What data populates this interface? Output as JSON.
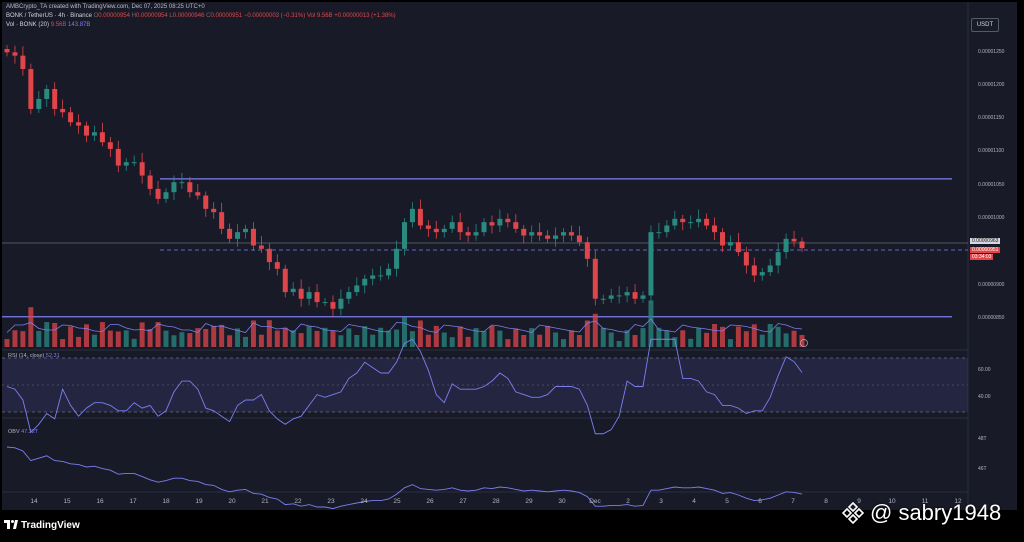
{
  "header": {
    "credit": "AMBCrypto_TA created with TradingView.com, Dec 07, 2025 08:25 UTC+0",
    "symbol": "BONK / TetherUS · 4h · Binance",
    "ohlc": {
      "o_label": "O",
      "o": "0.00000954",
      "h_label": "H",
      "h": "0.00000954",
      "l_label": "L",
      "l": "0.00000946",
      "c_label": "C",
      "c": "0.00000951",
      "change": "−0.00000003 (−0.31%)",
      "vol": "Vol 9.56B",
      "extra": "+0.00000013 (+1.38%)"
    },
    "volume": {
      "label": "Vol · BONK (20)",
      "value": "9.56B",
      "ma": "143.87B"
    }
  },
  "currency_button": "USDT",
  "price_axis": [
    "0.00001250",
    "0.00001200",
    "0.00001150",
    "0.00001100",
    "0.00001050",
    "0.00001000",
    "0.00000900",
    "0.00000850"
  ],
  "price_tags": {
    "crosshair": "0.00000963",
    "last": "0.00000951",
    "countdown": "03:34:03"
  },
  "time_axis": [
    "14",
    "15",
    "16",
    "17",
    "18",
    "19",
    "20",
    "21",
    "22",
    "23",
    "24",
    "25",
    "26",
    "27",
    "28",
    "29",
    "30",
    "Dec",
    "2",
    "3",
    "4",
    "5",
    "6",
    "7",
    "8",
    "9",
    "10",
    "11",
    "12"
  ],
  "rsi": {
    "label": "RSI (14, close)",
    "value": "52.31",
    "levels": [
      "60.00",
      "40.00"
    ]
  },
  "obv": {
    "label": "OBV",
    "value": "47.32T",
    "levels": [
      "48T",
      "46T"
    ]
  },
  "footer": {
    "logo": "TradingView",
    "watermark": "@ sabry1948"
  },
  "colors": {
    "up": "#2a8a80",
    "down": "#e0454a",
    "line": "#7b7ff0",
    "bg": "#181a28"
  },
  "chart_data": {
    "type": "candlestick",
    "interval": "4h",
    "y_range": [
      8.2e-06,
      1.29e-05
    ],
    "resistance": 1.055e-05,
    "support": 8.48e-06,
    "close_path": [
      12.45,
      12.4,
      12.2,
      11.6,
      11.75,
      11.9,
      11.6,
      11.55,
      11.4,
      11.35,
      11.2,
      11.25,
      11.1,
      11.0,
      10.75,
      10.8,
      10.8,
      10.6,
      10.4,
      10.25,
      10.35,
      10.5,
      10.5,
      10.35,
      10.3,
      10.1,
      10.05,
      9.8,
      9.65,
      9.75,
      9.8,
      9.55,
      9.5,
      9.3,
      9.2,
      8.85,
      8.9,
      8.75,
      8.85,
      8.7,
      8.7,
      8.6,
      8.75,
      8.85,
      8.95,
      9.05,
      9.1,
      9.1,
      9.2,
      9.5,
      9.9,
      10.1,
      9.85,
      9.8,
      9.75,
      9.8,
      9.9,
      9.75,
      9.7,
      9.75,
      9.9,
      9.85,
      9.95,
      9.9,
      9.8,
      9.7,
      9.75,
      9.7,
      9.65,
      9.7,
      9.75,
      9.7,
      9.6,
      9.35,
      8.75,
      8.75,
      8.8,
      8.8,
      8.85,
      8.75,
      8.8,
      9.75,
      9.75,
      9.85,
      9.95,
      9.9,
      9.9,
      9.95,
      9.85,
      9.75,
      9.55,
      9.6,
      9.45,
      9.25,
      9.1,
      9.15,
      9.25,
      9.45,
      9.65,
      9.61,
      9.51
    ],
    "rsi_levels": [
      60,
      40
    ],
    "rsi_last": 52.31
  }
}
